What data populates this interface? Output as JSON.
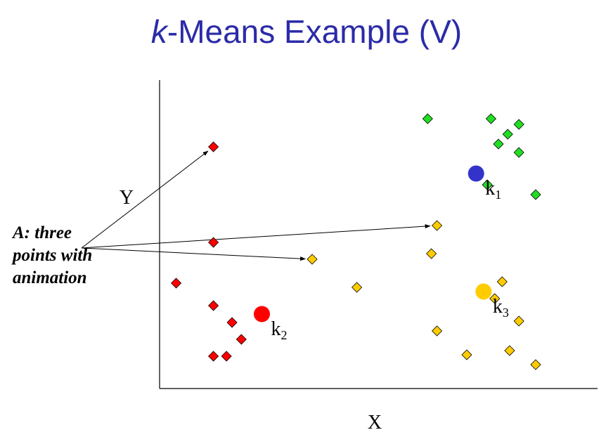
{
  "title": {
    "italic": "k",
    "rest": "-Means Example (V)"
  },
  "axes": {
    "xlabel": "X",
    "ylabel": "Y"
  },
  "annotation": {
    "line1": "A: three",
    "line2": "points with",
    "line3": "animation"
  },
  "centroids": [
    {
      "name": "k",
      "sub": "1",
      "color": "#3333cc",
      "x": 8.25,
      "y": 7.65
    },
    {
      "name": "k",
      "sub": "2",
      "color": "#ff0000",
      "x": 2.5,
      "y": 2.65
    },
    {
      "name": "k",
      "sub": "3",
      "color": "#ffcc00",
      "x": 8.45,
      "y": 3.45
    }
  ],
  "clusters": [
    {
      "name": "red",
      "color": "#ff0000",
      "points": [
        [
          1.2,
          8.6
        ],
        [
          1.2,
          5.2
        ],
        [
          0.2,
          3.75
        ],
        [
          1.2,
          2.95
        ],
        [
          1.7,
          2.35
        ],
        [
          1.95,
          1.75
        ],
        [
          1.2,
          1.15
        ],
        [
          1.55,
          1.15
        ]
      ]
    },
    {
      "name": "green",
      "color": "#22dd22",
      "points": [
        [
          6.95,
          9.6
        ],
        [
          8.65,
          9.6
        ],
        [
          9.4,
          9.4
        ],
        [
          9.1,
          9.05
        ],
        [
          8.85,
          8.7
        ],
        [
          9.4,
          8.4
        ],
        [
          8.55,
          7.25
        ],
        [
          9.85,
          6.9
        ]
      ]
    },
    {
      "name": "yellow",
      "color": "#ffcc00",
      "points": [
        [
          7.2,
          5.8
        ],
        [
          7.05,
          4.8
        ],
        [
          3.85,
          4.6
        ],
        [
          8.95,
          3.8
        ],
        [
          5.05,
          3.6
        ],
        [
          8.75,
          3.2
        ],
        [
          9.4,
          2.4
        ],
        [
          7.2,
          2.05
        ],
        [
          9.15,
          1.35
        ],
        [
          8.0,
          1.2
        ],
        [
          9.85,
          0.85
        ]
      ]
    }
  ],
  "arrows": [
    {
      "from": "annotation",
      "to": [
        1.2,
        8.6
      ]
    },
    {
      "from": "annotation",
      "to": [
        7.2,
        5.8
      ]
    },
    {
      "from": "annotation",
      "to": [
        3.85,
        4.6
      ]
    }
  ],
  "ranges": {
    "x": [
      0,
      10
    ],
    "y": [
      0,
      11
    ]
  }
}
